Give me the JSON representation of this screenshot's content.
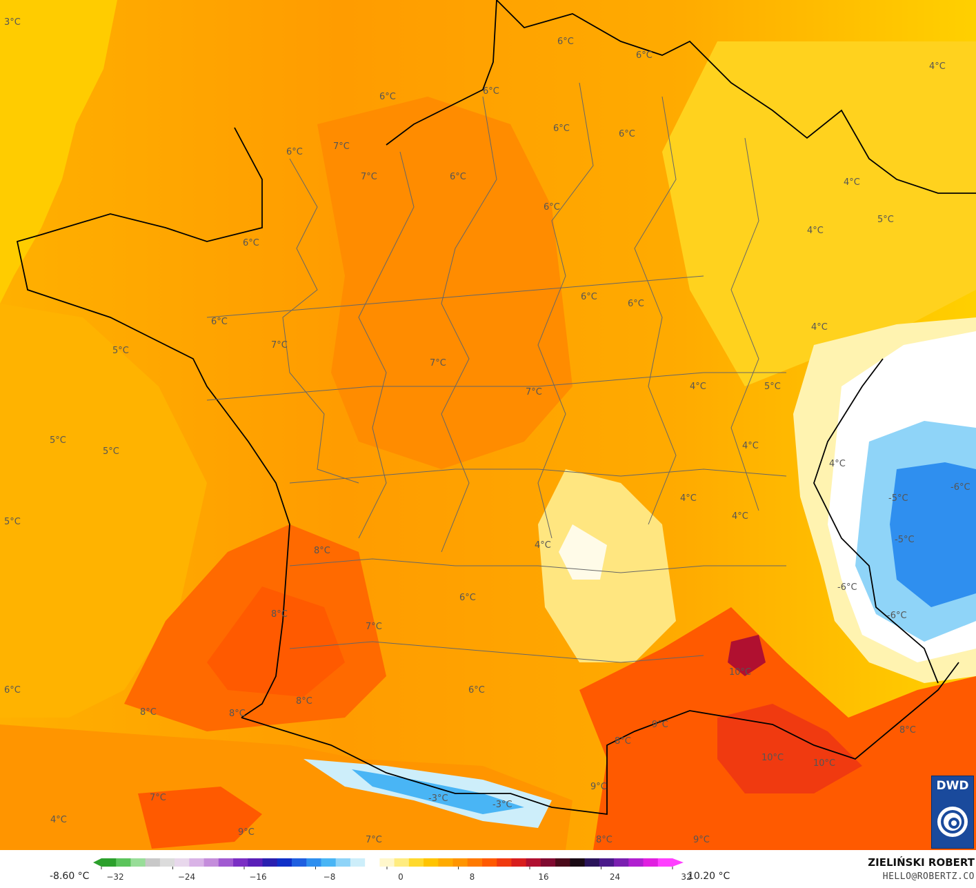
{
  "map": {
    "labels": [
      {
        "text": "3°C"
      },
      {
        "text": "6°C"
      },
      {
        "text": "6°C"
      },
      {
        "text": "4°C"
      },
      {
        "text": "6°C"
      },
      {
        "text": "6°C"
      },
      {
        "text": "6°C"
      },
      {
        "text": "6°C"
      },
      {
        "text": "6°C"
      },
      {
        "text": "7°C"
      },
      {
        "text": "7°C"
      },
      {
        "text": "4°C"
      },
      {
        "text": "6°C"
      },
      {
        "text": "5°C"
      },
      {
        "text": "6°C"
      },
      {
        "text": "4°C"
      },
      {
        "text": "6°C"
      },
      {
        "text": "6°C"
      },
      {
        "text": "6°C"
      },
      {
        "text": "4°C"
      },
      {
        "text": "6°C"
      },
      {
        "text": "5°C"
      },
      {
        "text": "7°C"
      },
      {
        "text": "4°C"
      },
      {
        "text": "5°C"
      },
      {
        "text": "7°C"
      },
      {
        "text": "7°C"
      },
      {
        "text": "4°C"
      },
      {
        "text": "5°C"
      },
      {
        "text": "5°C"
      },
      {
        "text": "4°C"
      },
      {
        "text": "-6°C"
      },
      {
        "text": "-5°C"
      },
      {
        "text": "4°C"
      },
      {
        "text": "4°C"
      },
      {
        "text": "5°C"
      },
      {
        "text": "4°C"
      },
      {
        "text": "-5°C"
      },
      {
        "text": "8°C"
      },
      {
        "text": "-6°C"
      },
      {
        "text": "6°C"
      },
      {
        "text": "8°C"
      },
      {
        "text": "-6°C"
      },
      {
        "text": "7°C"
      },
      {
        "text": "10°C"
      },
      {
        "text": "6°C"
      },
      {
        "text": "6°C"
      },
      {
        "text": "8°C"
      },
      {
        "text": "8°C"
      },
      {
        "text": "8°C"
      },
      {
        "text": "9°C"
      },
      {
        "text": "8°C"
      },
      {
        "text": "8°C"
      },
      {
        "text": "10°C"
      },
      {
        "text": "10°C"
      },
      {
        "text": "9°C"
      },
      {
        "text": "7°C"
      },
      {
        "text": "-3°C"
      },
      {
        "text": "-3°C"
      },
      {
        "text": "4°C"
      },
      {
        "text": "9°C"
      },
      {
        "text": "7°C"
      },
      {
        "text": "8°C"
      },
      {
        "text": "9°C"
      }
    ]
  },
  "legend": {
    "min_label": "-8.60 °C",
    "max_label": "10.20 °C",
    "ticks": [
      "−32",
      "−24",
      "−16",
      "−8",
      "0",
      "8",
      "16",
      "24",
      "32"
    ],
    "colors": [
      "#2ca02c",
      "#5cc45c",
      "#98dd98",
      "#c8c8c8",
      "#dcdcdc",
      "#e8d8ec",
      "#d9b3e6",
      "#c48ddb",
      "#a15ad1",
      "#7b2fc4",
      "#5a1fb8",
      "#2a1fb0",
      "#1030c8",
      "#1f5fe0",
      "#2f8fef",
      "#49b5f5",
      "#8fd4f8",
      "#cdeefa",
      "#ffffff",
      "#fff7cc",
      "#ffec80",
      "#ffd92e",
      "#ffc400",
      "#ffab00",
      "#ff9500",
      "#ff7a00",
      "#ff5a00",
      "#f03a10",
      "#d81e1e",
      "#b01030",
      "#800a30",
      "#4a0a1a",
      "#1a0a14",
      "#2a145a",
      "#4a1a8a",
      "#7a20b0",
      "#b020d0",
      "#e020e0",
      "#ff40ff"
    ]
  },
  "credit": {
    "author": "ZIELIŃSKI ROBERT",
    "email": "HELLO@ROBERTZ.CO",
    "logo_text": "DWD"
  }
}
